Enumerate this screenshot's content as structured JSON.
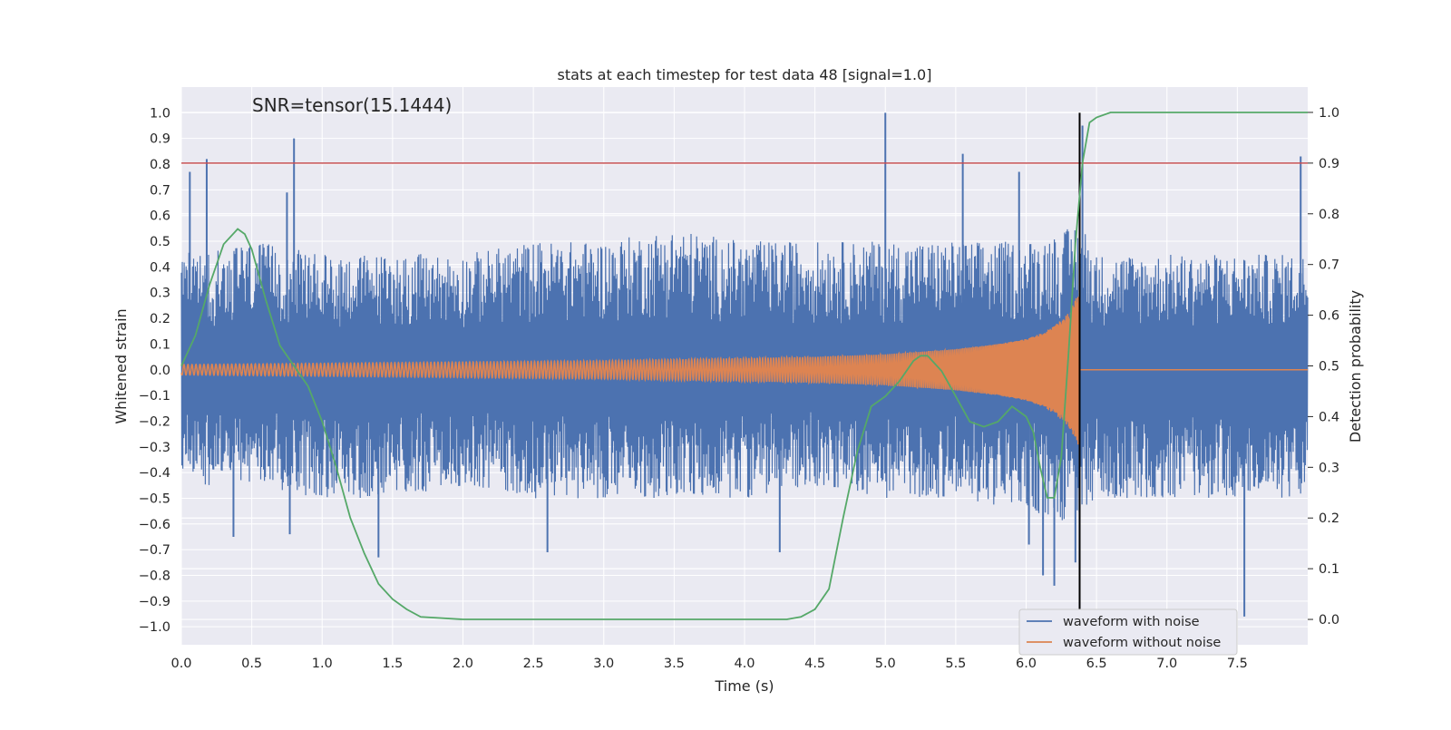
{
  "chart_data": {
    "type": "line",
    "title": "stats at each timestep for test data 48 [signal=1.0]",
    "annotation": "SNR=tensor(15.1444)",
    "xlabel": "Time (s)",
    "ylabel": "Whitened strain",
    "y2label": "Detection probability",
    "xlim": [
      0,
      8
    ],
    "ylim": [
      -1.07,
      1.1
    ],
    "y2lim": [
      -0.05,
      1.05
    ],
    "grid": true,
    "legend_position": "lower-right",
    "x_ticks": [
      0.0,
      0.5,
      1.0,
      1.5,
      2.0,
      2.5,
      3.0,
      3.5,
      4.0,
      4.5,
      5.0,
      5.5,
      6.0,
      6.5,
      7.0,
      7.5
    ],
    "x_tick_labels": [
      "0.0",
      "0.5",
      "1.0",
      "1.5",
      "2.0",
      "2.5",
      "3.0",
      "3.5",
      "4.0",
      "4.5",
      "5.0",
      "5.5",
      "6.0",
      "6.5",
      "7.0",
      "7.5"
    ],
    "y_ticks": [
      1.0,
      0.9,
      0.8,
      0.7,
      0.6,
      0.5,
      0.4,
      0.3,
      0.2,
      0.1,
      0.0,
      -0.1,
      -0.2,
      -0.3,
      -0.4,
      -0.5,
      -0.6,
      -0.7,
      -0.8,
      -0.9,
      -1.0
    ],
    "y_tick_labels": [
      "1.0",
      "0.9",
      "0.8",
      "0.7",
      "0.6",
      "0.5",
      "0.4",
      "0.3",
      "0.2",
      "0.1",
      "0.0",
      "−0.1",
      "−0.2",
      "−0.3",
      "−0.4",
      "−0.5",
      "−0.6",
      "−0.7",
      "−0.8",
      "−0.9",
      "−1.0"
    ],
    "y2_ticks": [
      1.0,
      0.9,
      0.8,
      0.7,
      0.6,
      0.5,
      0.4,
      0.3,
      0.2,
      0.1,
      0.0
    ],
    "y2_tick_labels": [
      "1.0",
      "0.9",
      "0.8",
      "0.7",
      "0.6",
      "0.5",
      "0.4",
      "0.3",
      "0.2",
      "0.1",
      "0.0"
    ],
    "threshold": {
      "axis": "right",
      "value": 0.9,
      "color": "#c44e52"
    },
    "merger_marker": {
      "x": 6.38,
      "y_range": [
        -1.0,
        1.0
      ],
      "color": "#000000"
    },
    "series": [
      {
        "name": "waveform with noise",
        "color": "#4c72b0",
        "axis": "left",
        "kind": "noise_envelope",
        "description_points_x": [
          0.0,
          0.5,
          1.0,
          1.5,
          2.0,
          2.5,
          3.0,
          3.5,
          4.0,
          4.5,
          5.0,
          5.5,
          6.0,
          6.3,
          6.38,
          6.5,
          7.0,
          7.5,
          8.0
        ],
        "upper_envelope": [
          0.45,
          0.5,
          0.45,
          0.45,
          0.45,
          0.5,
          0.5,
          0.55,
          0.5,
          0.5,
          0.5,
          0.5,
          0.5,
          0.55,
          0.6,
          0.45,
          0.45,
          0.45,
          0.45
        ],
        "lower_envelope": [
          -0.45,
          -0.45,
          -0.5,
          -0.5,
          -0.45,
          -0.5,
          -0.5,
          -0.5,
          -0.5,
          -0.45,
          -0.5,
          -0.5,
          -0.55,
          -0.6,
          -0.6,
          -0.5,
          -0.5,
          -0.5,
          -0.5
        ],
        "spikes": [
          {
            "x": 0.06,
            "y": 0.77
          },
          {
            "x": 0.18,
            "y": 0.82
          },
          {
            "x": 0.8,
            "y": 0.9
          },
          {
            "x": 0.75,
            "y": 0.69
          },
          {
            "x": 5.0,
            "y": 1.0
          },
          {
            "x": 5.55,
            "y": 0.84
          },
          {
            "x": 5.95,
            "y": 0.77
          },
          {
            "x": 6.4,
            "y": 0.95
          },
          {
            "x": 7.95,
            "y": 0.83
          },
          {
            "x": 0.37,
            "y": -0.65
          },
          {
            "x": 0.77,
            "y": -0.64
          },
          {
            "x": 1.4,
            "y": -0.73
          },
          {
            "x": 2.6,
            "y": -0.71
          },
          {
            "x": 4.25,
            "y": -0.71
          },
          {
            "x": 6.2,
            "y": -0.84
          },
          {
            "x": 6.12,
            "y": -0.8
          },
          {
            "x": 6.35,
            "y": -0.75
          },
          {
            "x": 7.55,
            "y": -0.96
          },
          {
            "x": 6.02,
            "y": -0.68
          }
        ]
      },
      {
        "name": "waveform without noise",
        "color": "#dd8452",
        "axis": "left",
        "kind": "chirp",
        "envelope_x": [
          0.0,
          1.0,
          2.0,
          3.0,
          4.0,
          4.5,
          5.0,
          5.5,
          5.8,
          6.0,
          6.1,
          6.2,
          6.3,
          6.35,
          6.38
        ],
        "envelope_amp": [
          0.02,
          0.025,
          0.03,
          0.035,
          0.045,
          0.05,
          0.06,
          0.08,
          0.1,
          0.12,
          0.14,
          0.17,
          0.22,
          0.27,
          0.32
        ],
        "ringdown_x": [
          6.38,
          8.0
        ],
        "ringdown_y": 0.0
      },
      {
        "name": "",
        "color": "#55a868",
        "axis": "right",
        "kind": "line",
        "x": [
          0.0,
          0.1,
          0.2,
          0.3,
          0.4,
          0.45,
          0.5,
          0.6,
          0.7,
          0.8,
          0.9,
          1.0,
          1.1,
          1.2,
          1.3,
          1.4,
          1.5,
          1.6,
          1.7,
          2.0,
          3.0,
          4.0,
          4.3,
          4.4,
          4.5,
          4.6,
          4.7,
          4.8,
          4.9,
          5.0,
          5.1,
          5.2,
          5.25,
          5.3,
          5.4,
          5.5,
          5.6,
          5.7,
          5.8,
          5.9,
          6.0,
          6.05,
          6.1,
          6.15,
          6.2,
          6.25,
          6.3,
          6.35,
          6.4,
          6.45,
          6.5,
          6.6,
          7.0,
          7.5,
          8.0
        ],
        "y": [
          0.5,
          0.56,
          0.66,
          0.74,
          0.77,
          0.76,
          0.73,
          0.63,
          0.54,
          0.5,
          0.46,
          0.39,
          0.3,
          0.2,
          0.13,
          0.07,
          0.04,
          0.02,
          0.005,
          0.0,
          0.0,
          0.0,
          0.0,
          0.005,
          0.02,
          0.06,
          0.2,
          0.33,
          0.42,
          0.44,
          0.47,
          0.51,
          0.52,
          0.52,
          0.49,
          0.44,
          0.39,
          0.38,
          0.39,
          0.42,
          0.4,
          0.37,
          0.3,
          0.24,
          0.24,
          0.32,
          0.52,
          0.74,
          0.9,
          0.98,
          0.99,
          1.0,
          1.0,
          1.0,
          1.0
        ]
      }
    ]
  }
}
